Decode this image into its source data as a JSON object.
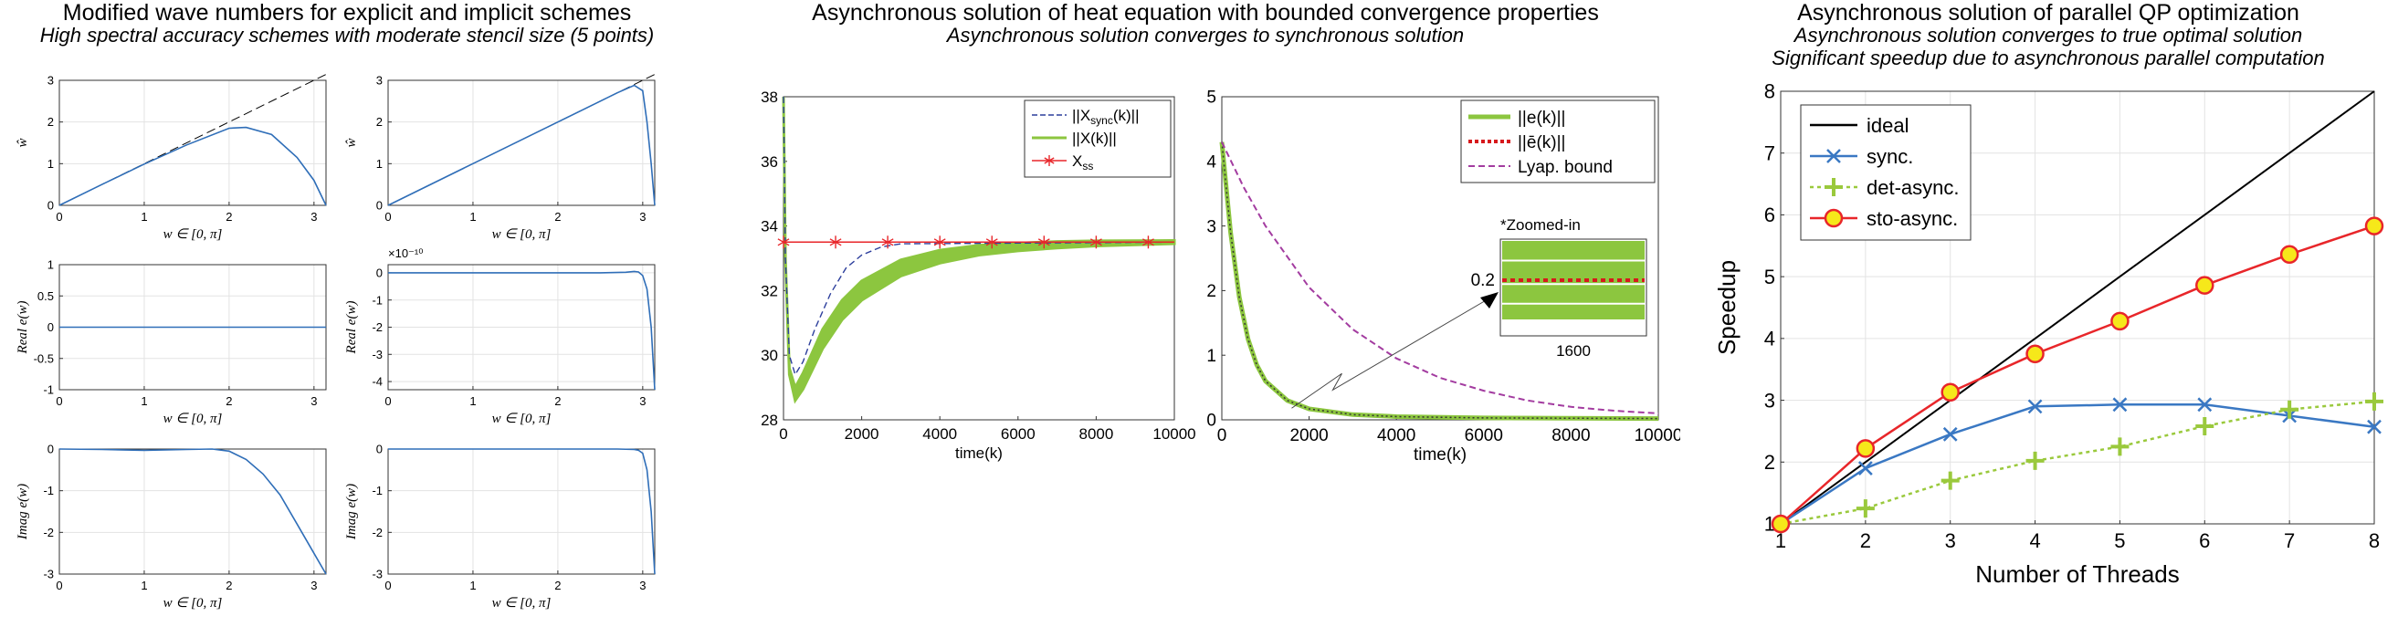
{
  "panels": [
    {
      "title": "Modified wave numbers for explicit and implicit schemes",
      "subtitles": [
        "High spectral accuracy schemes with moderate stencil size (5 points)"
      ]
    },
    {
      "title": "Asynchronous solution of heat equation with bounded convergence properties",
      "subtitles": [
        "Asynchronous solution converges to synchronous solution"
      ]
    },
    {
      "title": "Asynchronous solution of parallel QP optimization",
      "subtitles": [
        "Asynchronous solution converges to true optimal solution",
        "Significant speedup due to asynchronous parallel computation"
      ]
    }
  ],
  "chart_data": [
    {
      "id": "mw-left-1",
      "type": "line",
      "xlabel": "w ∈ [0, π]",
      "ylabel": "ŵ",
      "xlim": [
        0,
        3.14159
      ],
      "ylim": [
        0,
        3
      ],
      "xticks": [
        0,
        1,
        2,
        3
      ],
      "yticks": [
        0,
        1,
        2,
        3
      ],
      "series": [
        {
          "style": "dashed",
          "color": "#000000",
          "x": [
            0,
            3.14159
          ],
          "y": [
            0,
            3.14159
          ]
        },
        {
          "style": "solid",
          "color": "#2f6eb8",
          "x": [
            0,
            0.5,
            1.0,
            1.5,
            2.0,
            2.2,
            2.5,
            2.8,
            3.0,
            3.14159
          ],
          "y": [
            0,
            0.5,
            0.99,
            1.45,
            1.85,
            1.87,
            1.7,
            1.15,
            0.6,
            0
          ]
        }
      ]
    },
    {
      "id": "mw-right-1",
      "type": "line",
      "xlabel": "w ∈ [0, π]",
      "ylabel": "ŵ",
      "xlim": [
        0,
        3.14159
      ],
      "ylim": [
        0,
        3
      ],
      "xticks": [
        0,
        1,
        2,
        3
      ],
      "yticks": [
        0,
        1,
        2,
        3
      ],
      "series": [
        {
          "style": "dashed",
          "color": "#000000",
          "x": [
            0,
            3.14159
          ],
          "y": [
            0,
            3.14159
          ]
        },
        {
          "style": "solid",
          "color": "#2f6eb8",
          "x": [
            0,
            1.0,
            2.0,
            2.7,
            2.9,
            3.0,
            3.05,
            3.1,
            3.14159
          ],
          "y": [
            0,
            1.0,
            2.0,
            2.7,
            2.88,
            2.75,
            2.0,
            1.0,
            0
          ]
        }
      ]
    },
    {
      "id": "mw-left-2",
      "type": "line",
      "xlabel": "w ∈ [0, π]",
      "ylabel": "Real e(w)",
      "xlim": [
        0,
        3.14159
      ],
      "ylim": [
        -1,
        1
      ],
      "xticks": [
        0,
        1,
        2,
        3
      ],
      "yticks": [
        -1,
        -0.5,
        0,
        0.5,
        1
      ],
      "series": [
        {
          "style": "solid",
          "color": "#2f6eb8",
          "x": [
            0,
            3.14159
          ],
          "y": [
            0,
            0
          ]
        }
      ]
    },
    {
      "id": "mw-right-2",
      "type": "line",
      "xlabel": "w ∈ [0, π]",
      "ylabel": "Real e(w)",
      "xlim": [
        0,
        3.14159
      ],
      "ylim": [
        -4.3,
        0.3
      ],
      "yscale_label": "×10⁻¹⁰",
      "xticks": [
        0,
        1,
        2,
        3
      ],
      "yticks": [
        0,
        -1,
        -2,
        -3,
        -4
      ],
      "series": [
        {
          "style": "solid",
          "color": "#2f6eb8",
          "x": [
            0,
            1.0,
            2.0,
            2.5,
            2.8,
            2.9,
            2.95,
            3.0,
            3.05,
            3.1,
            3.14159
          ],
          "y": [
            0,
            0,
            0,
            0,
            0.02,
            0.05,
            0.03,
            -0.1,
            -0.6,
            -2.0,
            -4.3
          ]
        }
      ]
    },
    {
      "id": "mw-left-3",
      "type": "line",
      "xlabel": "w ∈ [0, π]",
      "ylabel": "Imag e(w)",
      "xlim": [
        0,
        3.14159
      ],
      "ylim": [
        -3,
        0
      ],
      "xticks": [
        0,
        1,
        2,
        3
      ],
      "yticks": [
        0,
        -1,
        -2,
        -3
      ],
      "series": [
        {
          "style": "solid",
          "color": "#2f6eb8",
          "x": [
            0,
            0.5,
            1.0,
            1.5,
            1.8,
            2.0,
            2.2,
            2.4,
            2.6,
            2.8,
            3.0,
            3.14159
          ],
          "y": [
            0,
            -0.01,
            -0.03,
            -0.01,
            0,
            -0.05,
            -0.25,
            -0.6,
            -1.1,
            -1.8,
            -2.5,
            -3.0
          ]
        }
      ]
    },
    {
      "id": "mw-right-3",
      "type": "line",
      "xlabel": "w ∈ [0, π]",
      "ylabel": "Imag e(w)",
      "xlim": [
        0,
        3.14159
      ],
      "ylim": [
        -3,
        0
      ],
      "xticks": [
        0,
        1,
        2,
        3
      ],
      "yticks": [
        0,
        -1,
        -2,
        -3
      ],
      "series": [
        {
          "style": "solid",
          "color": "#2f6eb8",
          "x": [
            0,
            1.0,
            2.0,
            2.7,
            2.9,
            2.95,
            3.0,
            3.05,
            3.1,
            3.14159
          ],
          "y": [
            0,
            0,
            0,
            0,
            -0.01,
            -0.03,
            -0.1,
            -0.5,
            -1.5,
            -3.0
          ]
        }
      ]
    },
    {
      "id": "heat-left",
      "type": "line",
      "xlabel": "time(k)",
      "ylabel": "",
      "xlim": [
        0,
        10000
      ],
      "ylim": [
        28,
        38
      ],
      "xticks": [
        0,
        2000,
        4000,
        6000,
        8000,
        10000
      ],
      "yticks": [
        28,
        30,
        32,
        34,
        36,
        38
      ],
      "legend": "top-right",
      "series": [
        {
          "name": "||X_sync(k)||",
          "style": "dashed",
          "color": "#2c3e9c",
          "x": [
            0,
            50,
            150,
            300,
            500,
            800,
            1200,
            1600,
            2000,
            2500,
            3000,
            10000
          ],
          "y": [
            38,
            33,
            30,
            29.4,
            29.8,
            30.8,
            31.9,
            32.7,
            33.1,
            33.35,
            33.45,
            33.5
          ]
        },
        {
          "name": "||X(k)||",
          "style": "band",
          "color": "#8cc63f",
          "x": [
            0,
            50,
            150,
            300,
            500,
            1000,
            1500,
            2000,
            3000,
            4000,
            5000,
            6000,
            7000,
            8000,
            10000
          ],
          "y": [
            38,
            33,
            29.5,
            28.8,
            29.2,
            30.5,
            31.4,
            32.0,
            32.7,
            33.05,
            33.25,
            33.35,
            33.42,
            33.46,
            33.5
          ],
          "band_width": [
            0,
            0,
            0.1,
            0.2,
            0.25,
            0.3,
            0.3,
            0.3,
            0.25,
            0.2,
            0.15,
            0.12,
            0.1,
            0.08,
            0.05
          ]
        },
        {
          "name": "X_ss",
          "style": "solid-markers",
          "color": "#e8262a",
          "marker": "asterisk",
          "x": [
            0,
            10000
          ],
          "y": [
            33.5,
            33.5
          ],
          "marker_x": [
            0,
            1333,
            2666,
            4000,
            5333,
            6666,
            8000,
            9333
          ]
        }
      ]
    },
    {
      "id": "heat-right",
      "type": "line",
      "xlabel": "time(k)",
      "ylabel": "",
      "xlim": [
        0,
        10000
      ],
      "ylim": [
        0,
        5
      ],
      "xticks": [
        0,
        2000,
        4000,
        6000,
        8000,
        10000
      ],
      "yticks": [
        0,
        1,
        2,
        3,
        4,
        5
      ],
      "legend": "top-right",
      "series": [
        {
          "name": "||e(k)||",
          "style": "band",
          "color": "#8cc63f",
          "x": [
            0,
            100,
            200,
            400,
            600,
            800,
            1000,
            1500,
            2000,
            3000,
            4000,
            6000,
            10000
          ],
          "y": [
            4.3,
            3.6,
            2.9,
            1.9,
            1.25,
            0.85,
            0.6,
            0.3,
            0.17,
            0.08,
            0.05,
            0.03,
            0.02
          ],
          "band_width": [
            0.05,
            0.06,
            0.06,
            0.06,
            0.06,
            0.05,
            0.05,
            0.04,
            0.03,
            0.03,
            0.02,
            0.02,
            0.02
          ]
        },
        {
          "name": "||ē(k)||",
          "style": "dotted",
          "color": "#d7191c",
          "x": [
            0,
            100,
            200,
            400,
            600,
            800,
            1000,
            1500,
            2000,
            3000,
            4000,
            6000,
            10000
          ],
          "y": [
            4.3,
            3.6,
            2.9,
            1.9,
            1.25,
            0.85,
            0.6,
            0.3,
            0.17,
            0.08,
            0.05,
            0.03,
            0.02
          ]
        },
        {
          "name": "Lyap. bound",
          "style": "dashed",
          "color": "#a33ca0",
          "x": [
            0,
            500,
            1000,
            2000,
            3000,
            4000,
            5000,
            6000,
            7000,
            8000,
            9000,
            10000
          ],
          "y": [
            4.3,
            3.6,
            3.0,
            2.05,
            1.4,
            0.95,
            0.65,
            0.45,
            0.3,
            0.2,
            0.14,
            0.1
          ]
        }
      ],
      "inset": {
        "title": "*Zoomed-in",
        "xtick": "1600",
        "ytick": "0.2"
      }
    },
    {
      "id": "qp-speedup",
      "type": "line",
      "xlabel": "Number of Threads",
      "ylabel": "Speedup",
      "xlim": [
        1,
        8
      ],
      "ylim": [
        1,
        8
      ],
      "xticks": [
        1,
        2,
        3,
        4,
        5,
        6,
        7,
        8
      ],
      "yticks": [
        1,
        2,
        3,
        4,
        5,
        6,
        7,
        8
      ],
      "legend": "top-left",
      "categories": [
        1,
        2,
        3,
        4,
        5,
        6,
        7,
        8
      ],
      "series": [
        {
          "name": "ideal",
          "color": "#000000",
          "marker": "none",
          "values": [
            1,
            2,
            3,
            4,
            5,
            6,
            7,
            8
          ]
        },
        {
          "name": "sync.",
          "color": "#3a78c3",
          "marker": "x",
          "values": [
            1,
            1.9,
            2.45,
            2.9,
            2.93,
            2.93,
            2.75,
            2.57
          ]
        },
        {
          "name": "det-async.",
          "color": "#9ac93c",
          "marker": "plus",
          "dashed": true,
          "values": [
            1,
            1.25,
            1.7,
            2.02,
            2.25,
            2.58,
            2.85,
            2.98
          ]
        },
        {
          "name": "sto-async.",
          "color": "#e8262a",
          "marker": "circle",
          "values": [
            1,
            2.22,
            3.13,
            3.75,
            4.28,
            4.86,
            5.36,
            5.82
          ]
        }
      ]
    }
  ]
}
